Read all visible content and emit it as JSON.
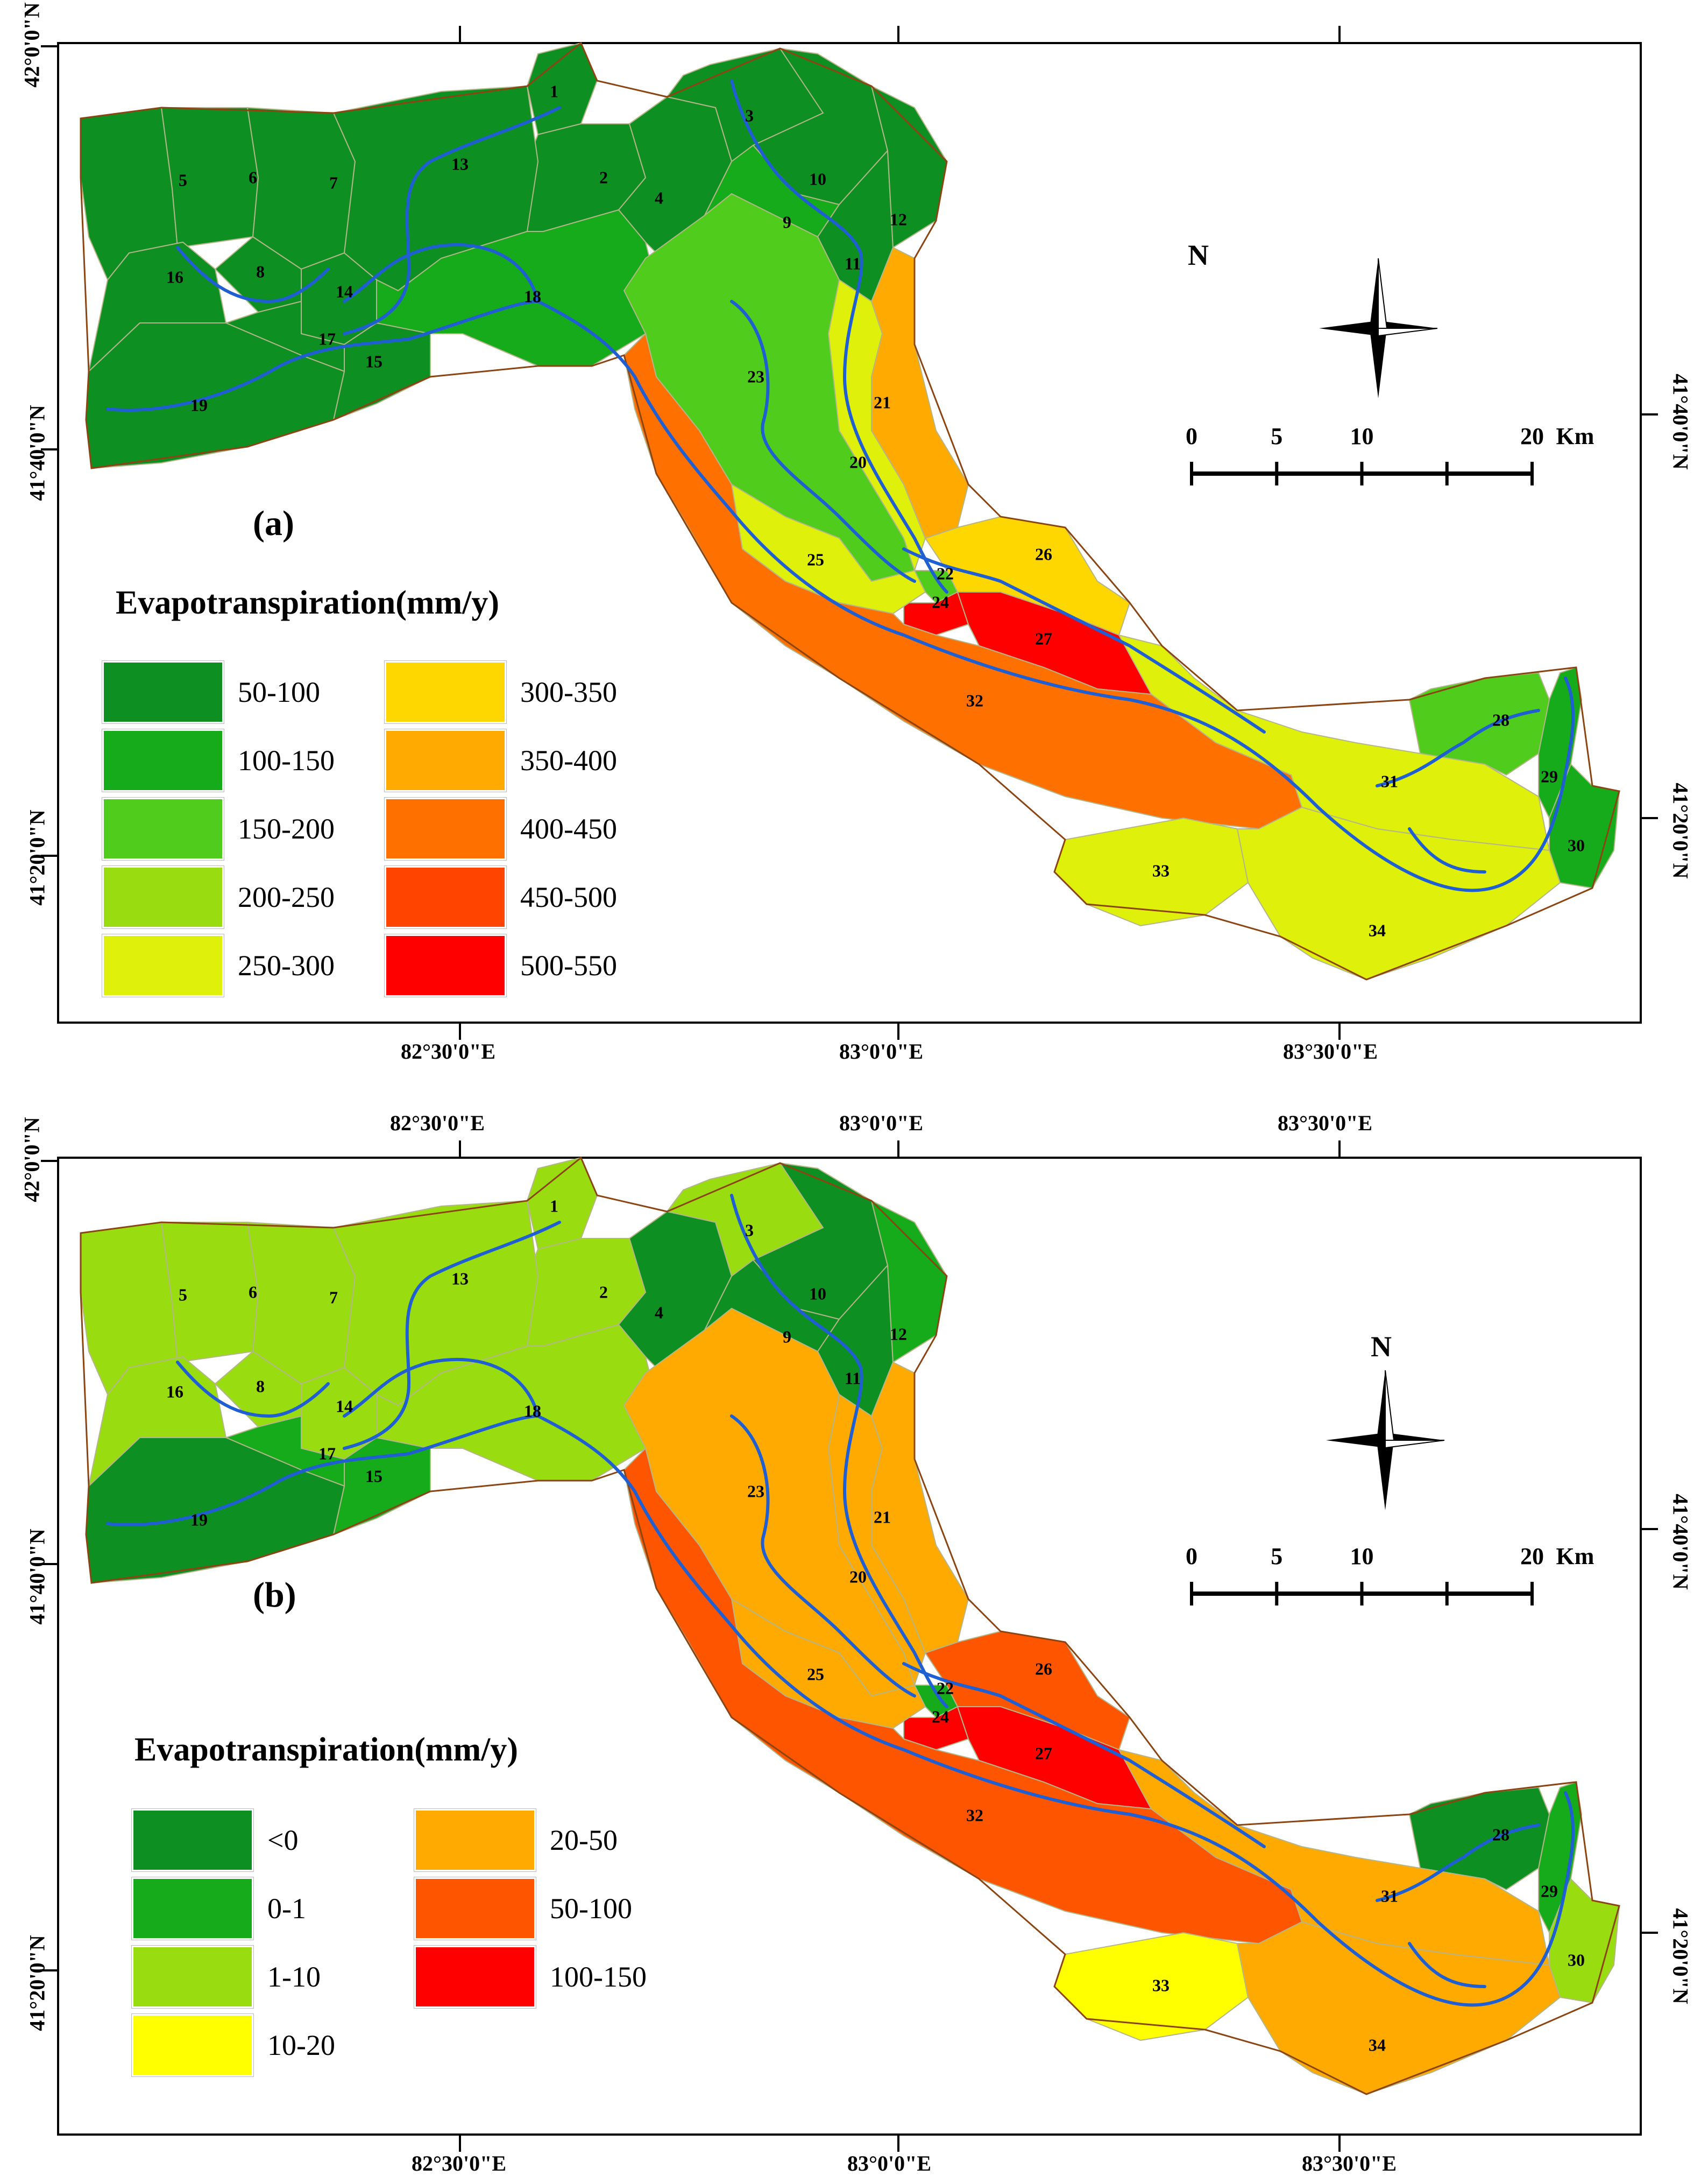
{
  "panels": [
    {
      "id": "a",
      "panel_label": "(a)",
      "legend_title": "Evapotranspiration(mm/y)",
      "legend": [
        {
          "label": "50-100",
          "color": "#0e8f22"
        },
        {
          "label": "100-150",
          "color": "#15ab1b"
        },
        {
          "label": "150-200",
          "color": "#4fcc1c"
        },
        {
          "label": "200-250",
          "color": "#99dd11"
        },
        {
          "label": "250-300",
          "color": "#dff00a"
        },
        {
          "label": "300-350",
          "color": "#ffd700"
        },
        {
          "label": "350-400",
          "color": "#ffaa00"
        },
        {
          "label": "400-450",
          "color": "#fe7000"
        },
        {
          "label": "450-500",
          "color": "#ff4400"
        },
        {
          "label": "500-550",
          "color": "#ff0000"
        }
      ],
      "top_lon_labels": [],
      "bottom_lon_labels": [
        "82°30'0\"E",
        "83°0'0\"E",
        "83°30'0\"E"
      ],
      "left_lat_labels": [
        "42°0'0\"N",
        "41°40'0\"N",
        "41°20'0\"N"
      ],
      "right_lat_labels": [
        "41°40'0\"N",
        "41°20'0\"N"
      ],
      "north_label": "N",
      "scale": {
        "ticks": [
          "0",
          "5",
          "10",
          "20"
        ],
        "unit": "Km"
      },
      "subbasin_colors": {
        "1": "#0e8f22",
        "2": "#0e8f22",
        "3": "#0e8f22",
        "4": "#0e8f22",
        "5": "#0e8f22",
        "6": "#0e8f22",
        "7": "#0e8f22",
        "8": "#0e8f22",
        "9": "#15ab1b",
        "10": "#0e8f22",
        "11": "#0e8f22",
        "12": "#0e8f22",
        "13": "#0e8f22",
        "14": "#0e8f22",
        "15": "#0e8f22",
        "16": "#0e8f22",
        "17": "#0e8f22",
        "18": "#15ab1b",
        "19": "#0e8f22",
        "20": "#dff00a",
        "21": "#ffaa00",
        "22": "#4fcc1c",
        "23": "#4fcc1c",
        "24": "#ff0000",
        "25": "#dff00a",
        "26": "#ffd700",
        "27": "#ff0000",
        "28": "#4fcc1c",
        "29": "#15ab1b",
        "30": "#15ab1b",
        "31": "#dff00a",
        "32": "#fe7000",
        "33": "#dff00a",
        "34": "#dff00a"
      }
    },
    {
      "id": "b",
      "panel_label": "(b)",
      "legend_title": "Evapotranspiration(mm/y)",
      "legend": [
        {
          "label": "<0",
          "color": "#0e8f22"
        },
        {
          "label": "0-1",
          "color": "#15ab1b"
        },
        {
          "label": "1-10",
          "color": "#99dd11"
        },
        {
          "label": "10-20",
          "color": "#ffff00"
        },
        {
          "label": "20-50",
          "color": "#ffaa00"
        },
        {
          "label": "50-100",
          "color": "#fe5500"
        },
        {
          "label": "100-150",
          "color": "#ff0000"
        }
      ],
      "top_lon_labels": [
        "82°30'0\"E",
        "83°0'0\"E",
        "83°30'0\"E"
      ],
      "bottom_lon_labels": [
        "82°30'0\"E",
        "83°0'0\"E",
        "83°30'0\"E"
      ],
      "left_lat_labels": [
        "42°0'0\"N",
        "41°40'0\"N",
        "41°20'0\"N"
      ],
      "right_lat_labels": [
        "41°40'0\"N",
        "41°20'0\"N"
      ],
      "north_label": "N",
      "scale": {
        "ticks": [
          "0",
          "5",
          "10",
          "20"
        ],
        "unit": "Km"
      },
      "subbasin_colors": {
        "1": "#99dd11",
        "2": "#99dd11",
        "3": "#99dd11",
        "4": "#0e8f22",
        "5": "#99dd11",
        "6": "#99dd11",
        "7": "#99dd11",
        "8": "#99dd11",
        "9": "#0e8f22",
        "10": "#0e8f22",
        "11": "#0e8f22",
        "12": "#15ab1b",
        "13": "#99dd11",
        "14": "#99dd11",
        "15": "#15ab1b",
        "16": "#99dd11",
        "17": "#15ab1b",
        "18": "#99dd11",
        "19": "#0e8f22",
        "20": "#ffaa00",
        "21": "#ffaa00",
        "22": "#15ab1b",
        "23": "#ffaa00",
        "24": "#ff0000",
        "25": "#ffaa00",
        "26": "#fe5500",
        "27": "#ff0000",
        "28": "#0e8f22",
        "29": "#15ab1b",
        "30": "#99dd11",
        "31": "#ffaa00",
        "32": "#fe5500",
        "33": "#ffff00",
        "34": "#ffaa00"
      }
    }
  ]
}
